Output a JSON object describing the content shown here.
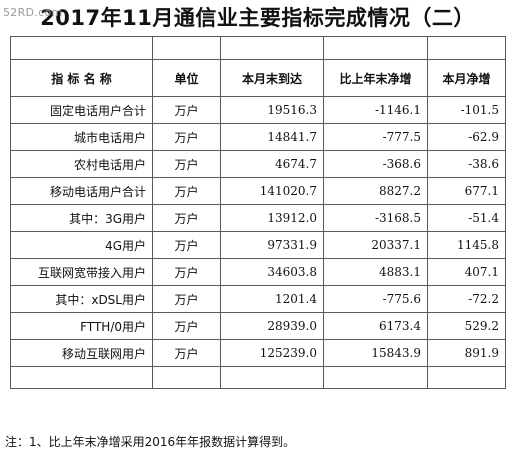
{
  "watermark": "52RD.com",
  "title": "2017年11月通信业主要指标完成情况（二）",
  "headers": {
    "name": "指 标 名 称",
    "unit": "单位",
    "current": "本月末到达",
    "yoy": "比上年末净增",
    "month": "本月净增"
  },
  "rows": [
    {
      "name": "固定电话用户合计",
      "unit": "万户",
      "current": "19516.3",
      "yoy": "-1146.1",
      "month": "-101.5"
    },
    {
      "name": "城市电话用户",
      "unit": "万户",
      "current": "14841.7",
      "yoy": "-777.5",
      "month": "-62.9"
    },
    {
      "name": "农村电话用户",
      "unit": "万户",
      "current": "4674.7",
      "yoy": "-368.6",
      "month": "-38.6"
    },
    {
      "name": "移动电话用户合计",
      "unit": "万户",
      "current": "141020.7",
      "yoy": "8827.2",
      "month": "677.1"
    },
    {
      "name": "其中：3G用户",
      "unit": "万户",
      "current": "13912.0",
      "yoy": "-3168.5",
      "month": "-51.4"
    },
    {
      "name": "4G用户",
      "unit": "万户",
      "current": "97331.9",
      "yoy": "20337.1",
      "month": "1145.8"
    },
    {
      "name": "互联网宽带接入用户",
      "unit": "万户",
      "current": "34603.8",
      "yoy": "4883.1",
      "month": "407.1"
    },
    {
      "name": "其中：xDSL用户",
      "unit": "万户",
      "current": "1201.4",
      "yoy": "-775.6",
      "month": "-72.2"
    },
    {
      "name": "FTTH/0用户",
      "unit": "万户",
      "current": "28939.0",
      "yoy": "6173.4",
      "month": "529.2"
    },
    {
      "name": "移动互联网用户",
      "unit": "万户",
      "current": "125239.0",
      "yoy": "15843.9",
      "month": "891.9"
    }
  ],
  "note": "注：1、比上年末净增采用2016年年报数据计算得到。"
}
